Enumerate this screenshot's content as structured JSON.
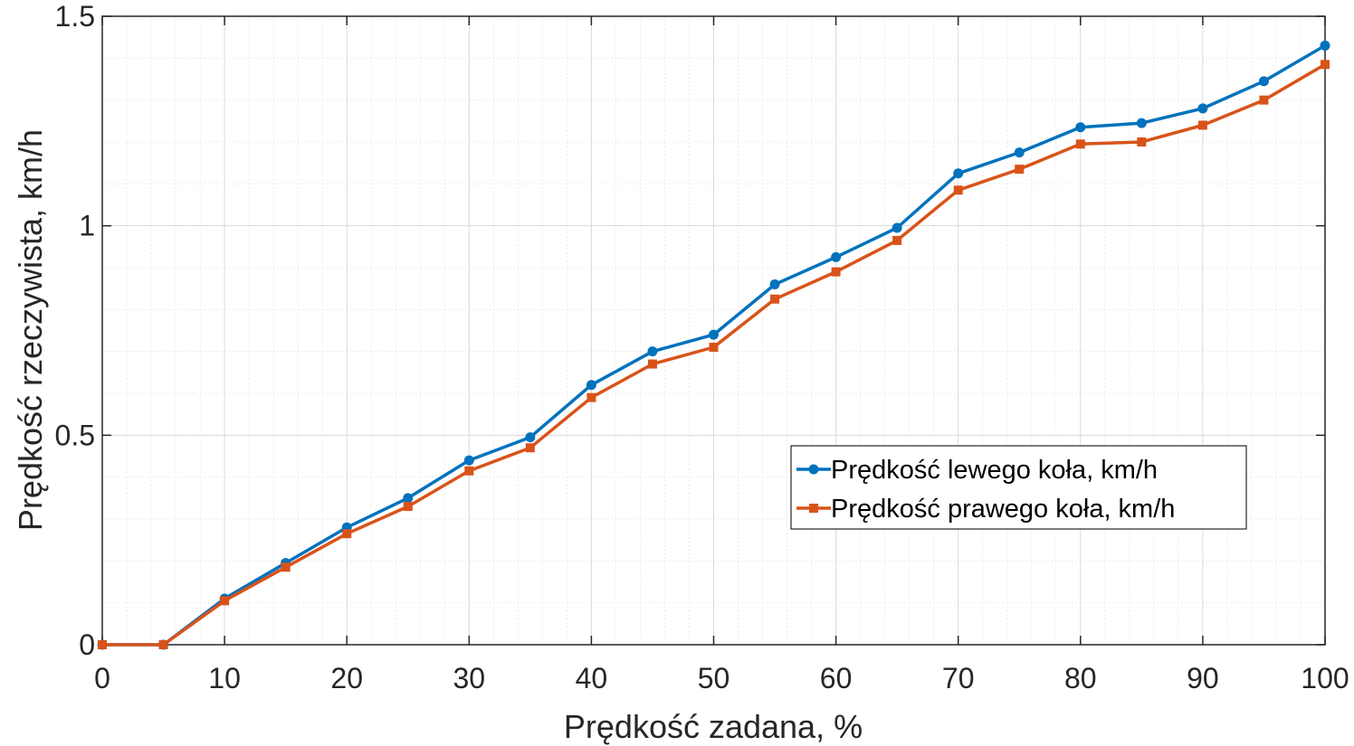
{
  "chart_data": {
    "type": "line",
    "xlabel": "Prędkość zadana, %",
    "ylabel": "Prędkość rzeczywista, km/h",
    "xlim": [
      0,
      100
    ],
    "ylim": [
      0,
      1.5
    ],
    "xticks": [
      "0",
      "10",
      "20",
      "30",
      "40",
      "50",
      "60",
      "70",
      "80",
      "90",
      "100"
    ],
    "yticks": [
      "0",
      "0.5",
      "1",
      "1.5"
    ],
    "grid": "major and minor",
    "legend_position": "lower-right",
    "x": [
      0,
      5,
      10,
      15,
      20,
      25,
      30,
      35,
      40,
      45,
      50,
      55,
      60,
      65,
      70,
      75,
      80,
      85,
      90,
      95,
      100
    ],
    "series": [
      {
        "name": "Prędkość lewego koła, km/h",
        "color": "#0072BD",
        "marker": "circle",
        "values": [
          0,
          0,
          0.11,
          0.195,
          0.28,
          0.35,
          0.44,
          0.495,
          0.62,
          0.7,
          0.74,
          0.86,
          0.925,
          0.995,
          1.125,
          1.175,
          1.235,
          1.245,
          1.28,
          1.345,
          1.43
        ]
      },
      {
        "name": "Prędkość prawego koła, km/h",
        "color": "#D95319",
        "marker": "square",
        "values": [
          0,
          0,
          0.105,
          0.185,
          0.265,
          0.33,
          0.415,
          0.47,
          0.59,
          0.67,
          0.71,
          0.825,
          0.89,
          0.965,
          1.085,
          1.135,
          1.195,
          1.2,
          1.24,
          1.3,
          1.385
        ]
      }
    ]
  }
}
